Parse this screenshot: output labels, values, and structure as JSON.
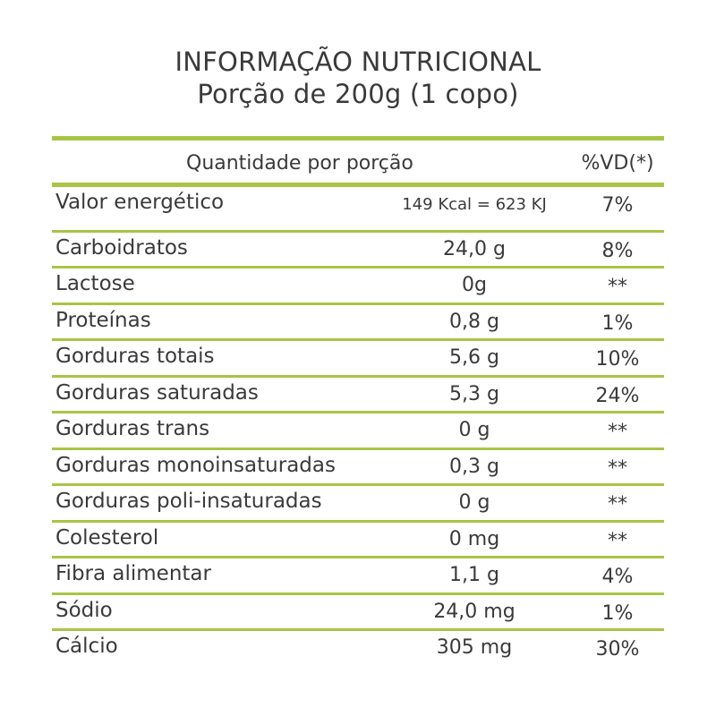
{
  "title": {
    "line1": "INFORMAÇÃO NUTRICIONAL",
    "line2": "Porção de 200g (1 copo)"
  },
  "header": {
    "quantity": "Quantidade por porção",
    "vd": "%VD(*)"
  },
  "colors": {
    "rule": "#a8c545",
    "text": "#3a3a3a"
  },
  "rows": [
    {
      "name": "Valor energético",
      "amount": "149 Kcal = 623 KJ",
      "vd": "7%"
    },
    {
      "name": "Carboidratos",
      "amount": "24,0 g",
      "vd": "8%"
    },
    {
      "name": "Lactose",
      "amount": "0g",
      "vd": "**"
    },
    {
      "name": "Proteínas",
      "amount": "0,8 g",
      "vd": "1%"
    },
    {
      "name": "Gorduras totais",
      "amount": "5,6 g",
      "vd": "10%"
    },
    {
      "name": "Gorduras saturadas",
      "amount": "5,3 g",
      "vd": "24%"
    },
    {
      "name": "Gorduras trans",
      "amount": "0 g",
      "vd": "**"
    },
    {
      "name": "Gorduras monoinsaturadas",
      "amount": "0,3 g",
      "vd": "**"
    },
    {
      "name": "Gorduras poli-insaturadas",
      "amount": "0 g",
      "vd": "**"
    },
    {
      "name": "Colesterol",
      "amount": "0 mg",
      "vd": "**"
    },
    {
      "name": "Fibra alimentar",
      "amount": "1,1 g",
      "vd": "4%"
    },
    {
      "name": "Sódio",
      "amount": "24,0 mg",
      "vd": "1%"
    },
    {
      "name": "Cálcio",
      "amount": "305 mg",
      "vd": "30%"
    }
  ]
}
